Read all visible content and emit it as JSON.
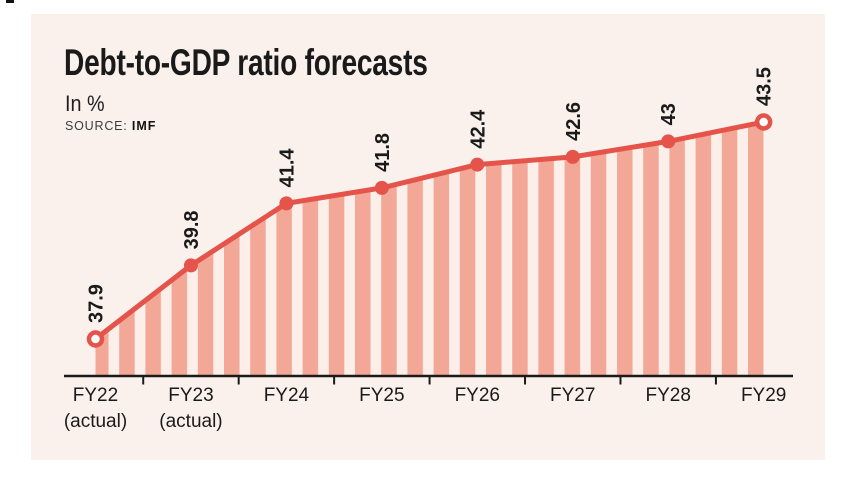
{
  "page": {
    "background": "#ffffff",
    "panel_background": "#fbf1ec"
  },
  "header": {
    "title": "Debt-to-GDP ratio forecasts",
    "subtitle": "In %",
    "source_label": "SOURCE:",
    "source_value": "IMF"
  },
  "chart_data": {
    "type": "line",
    "title": "Debt-to-GDP ratio forecasts",
    "ylabel": "In %",
    "source": "IMF",
    "categories": [
      "FY22 (actual)",
      "FY23 (actual)",
      "FY24",
      "FY25",
      "FY26",
      "FY27",
      "FY28",
      "FY29"
    ],
    "category_lines": [
      [
        "FY22",
        "(actual)"
      ],
      [
        "FY23",
        "(actual)"
      ],
      [
        "FY24"
      ],
      [
        "FY25"
      ],
      [
        "FY26"
      ],
      [
        "FY27"
      ],
      [
        "FY28"
      ],
      [
        "FY29"
      ]
    ],
    "values": [
      37.9,
      39.8,
      41.4,
      41.8,
      42.4,
      42.6,
      43,
      43.5
    ],
    "value_labels": [
      "37.9",
      "39.8",
      "41.4",
      "41.8",
      "42.4",
      "42.6",
      "43",
      "43.5"
    ],
    "ylim": [
      36,
      45
    ],
    "legend": "none",
    "grid": false,
    "area_fill": "vertical-stripes",
    "marker_style": {
      "endpoints": "open-circle",
      "interior": "filled-circle"
    },
    "colors": {
      "line": "#e4544a",
      "stripe": "#f3a796",
      "stripe_gap": "#fcefe9",
      "label": "#1a1a1a",
      "axis": "#1a1a1a",
      "source_text": "#3c3c3c"
    }
  }
}
